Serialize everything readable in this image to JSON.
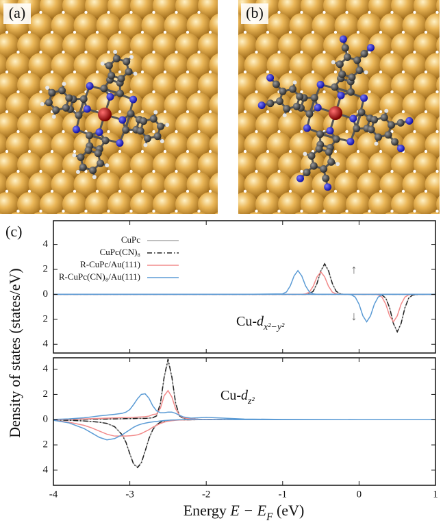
{
  "figure": {
    "panel_labels": [
      "(a)",
      "(b)",
      "(c)"
    ],
    "ylabel": "Density of states (states/eV)",
    "xlabel": [
      {
        "text": "Energy "
      },
      {
        "text": "E − E",
        "italic": true
      },
      {
        "text": "F",
        "italic": true,
        "sub": true
      },
      {
        "text": " (eV)"
      }
    ]
  },
  "chart_data": [
    {
      "type": "line",
      "xlim": [
        -4,
        1
      ],
      "ylim": [
        -4.7,
        5.9
      ],
      "xticks": [
        -4,
        -3,
        -2,
        -1,
        0,
        1
      ],
      "xtick_labels": false,
      "yticks": [
        {
          "value": -4,
          "label": "4"
        },
        {
          "value": -2,
          "label": "2"
        },
        0,
        2,
        4
      ],
      "legend": "upper left",
      "annotations": [
        {
          "segments": [
            {
              "text": "Cu-"
            },
            {
              "text": "d",
              "italic": true
            },
            {
              "text": "x²−y²",
              "italic": true,
              "sub": true
            }
          ]
        },
        {
          "segments": [
            {
              "text": "↑"
            }
          ]
        },
        {
          "segments": [
            {
              "text": "↓"
            }
          ]
        }
      ],
      "x": [
        -4,
        -3,
        -2,
        -1.5,
        -1,
        -0.95,
        -0.9,
        -0.85,
        -0.8,
        -0.75,
        -0.7,
        -0.65,
        -0.6,
        -0.55,
        -0.5,
        -0.45,
        -0.4,
        -0.35,
        -0.3,
        -0.25,
        -0.2,
        -0.15,
        -0.1,
        -0.05,
        0,
        0.05,
        0.1,
        0.15,
        0.2,
        0.25,
        0.3,
        0.35,
        0.4,
        0.45,
        0.5,
        0.55,
        0.6,
        0.65,
        0.7,
        0.8,
        1
      ],
      "series": [
        {
          "name": "CuPc",
          "color": "#aaaaaa",
          "dash": "none",
          "values": [
            0,
            0,
            0,
            0,
            0,
            0,
            0,
            0,
            0,
            0,
            0,
            0.05,
            0.24,
            0.86,
            1.87,
            2.4,
            1.87,
            0.86,
            0.24,
            0.05,
            0,
            0,
            0,
            0,
            0,
            0,
            0,
            0,
            0,
            0,
            0,
            0,
            0,
            0,
            0,
            0,
            0,
            0,
            0,
            0,
            0
          ],
          "values_down": [
            0,
            0,
            0,
            0,
            0,
            0,
            0,
            0,
            0,
            0,
            0,
            0,
            0,
            0,
            0,
            0,
            0,
            0,
            0,
            0,
            0,
            0,
            0,
            0,
            0,
            0,
            0,
            0,
            0,
            0,
            -0.06,
            -0.3,
            -1.08,
            -2.34,
            -3,
            -2.34,
            -1.08,
            -0.3,
            -0.06,
            0,
            0
          ]
        },
        {
          "name": "CuPc(CN)₈",
          "color": "#222222",
          "dash": "7 3 1.5 3",
          "values": [
            0,
            0,
            0,
            0,
            0,
            0,
            0,
            0,
            0,
            0,
            0,
            0.05,
            0.25,
            0.88,
            1.91,
            2.45,
            1.91,
            0.88,
            0.25,
            0.05,
            0,
            0,
            0,
            0,
            0,
            0,
            0,
            0,
            0,
            0,
            0,
            0,
            0,
            0,
            0,
            0,
            0,
            0,
            0,
            0,
            0
          ],
          "values_down": [
            0,
            0,
            0,
            0,
            0,
            0,
            0,
            0,
            0,
            0,
            0,
            0,
            0,
            0,
            0,
            0,
            0,
            0,
            0,
            0,
            0,
            0,
            0,
            0,
            0,
            0,
            0,
            0,
            0,
            0,
            -0.06,
            -0.3,
            -1.08,
            -2.34,
            -3,
            -2.34,
            -1.08,
            -0.3,
            -0.06,
            0,
            0
          ]
        },
        {
          "name": "R-CuPc/Au(111)",
          "color": "#f28b8b",
          "dash": "none",
          "values": [
            0,
            0,
            0,
            0,
            0,
            0,
            0,
            0,
            0,
            0,
            0.04,
            0.18,
            0.65,
            1.4,
            1.8,
            1.4,
            0.65,
            0.18,
            0.04,
            0,
            0,
            0,
            0,
            0,
            0,
            0,
            0,
            0,
            0,
            0,
            0,
            0,
            0,
            0,
            0,
            0,
            0,
            0,
            0,
            0,
            0
          ],
          "values_down": [
            0,
            0,
            0,
            0,
            0,
            0,
            0,
            0,
            0,
            0,
            0,
            0,
            0,
            0,
            0,
            0,
            0,
            0,
            0,
            0,
            0,
            0,
            0,
            0,
            0,
            0,
            0,
            0,
            0,
            -0.04,
            -0.22,
            -0.79,
            -1.72,
            -2.2,
            -1.72,
            -0.79,
            -0.22,
            -0.04,
            0,
            0,
            0
          ]
        },
        {
          "name": "R-CuPc(CN)₈/Au(111)",
          "color": "#5b9bd5",
          "dash": "none",
          "values": [
            0,
            0,
            0,
            0,
            0.04,
            0.19,
            0.68,
            1.48,
            1.9,
            1.48,
            0.68,
            0.19,
            0.04,
            0,
            0,
            0,
            0,
            0,
            0,
            0,
            0,
            0,
            0,
            0,
            0,
            0,
            0,
            0,
            0,
            0,
            0,
            0,
            0,
            0,
            0,
            0,
            0,
            0,
            0,
            0,
            0
          ],
          "values_down": [
            0,
            0,
            0,
            0,
            0,
            0,
            0,
            0,
            0,
            0,
            0,
            0,
            0,
            0,
            0,
            0,
            0,
            0,
            0,
            0,
            0,
            0,
            -0.04,
            -0.22,
            -0.79,
            -1.72,
            -2.2,
            -1.72,
            -0.79,
            -0.22,
            -0.04,
            0,
            0,
            0,
            0,
            0,
            0,
            0,
            0,
            0,
            0
          ]
        }
      ]
    },
    {
      "type": "line",
      "xlim": [
        -4,
        1
      ],
      "ylim": [
        -5.2,
        4.9
      ],
      "xticks": [
        -4,
        -3,
        -2,
        -1,
        0,
        1
      ],
      "xtick_labels": true,
      "yticks": [
        {
          "value": -4,
          "label": "4"
        },
        {
          "value": -2,
          "label": "2"
        },
        0,
        2,
        4
      ],
      "annotations": [
        {
          "segments": [
            {
              "text": "Cu-"
            },
            {
              "text": "d",
              "italic": true
            },
            {
              "text": "z²",
              "italic": true,
              "sub": true
            }
          ]
        }
      ],
      "x": [
        -4,
        -3.8,
        -3.6,
        -3.5,
        -3.4,
        -3.3,
        -3.2,
        -3.1,
        -3.05,
        -3,
        -2.95,
        -2.9,
        -2.85,
        -2.8,
        -2.75,
        -2.7,
        -2.65,
        -2.6,
        -2.55,
        -2.5,
        -2.45,
        -2.4,
        -2.35,
        -2.3,
        -2.2,
        -2.1,
        -2,
        -1.5,
        -1,
        0,
        1
      ],
      "series": [
        {
          "name": "CuPc",
          "color": "#aaaaaa",
          "dash": "none",
          "values": [
            0,
            0.02,
            0.03,
            0.04,
            0.05,
            0.05,
            0.06,
            0.07,
            0.08,
            0.08,
            0.09,
            0.1,
            0.1,
            0.1,
            0.12,
            0.15,
            0.3,
            1.25,
            3.35,
            4.7,
            3.35,
            1.25,
            0.3,
            0.1,
            0.05,
            0.03,
            0.02,
            0,
            0,
            0,
            0
          ],
          "values_down": [
            -0.02,
            -0.05,
            -0.1,
            -0.15,
            -0.2,
            -0.3,
            -0.55,
            -1.2,
            -1.8,
            -2.7,
            -3.5,
            -3.75,
            -3.4,
            -2.5,
            -1.5,
            -0.8,
            -0.4,
            -0.2,
            -0.1,
            -0.06,
            -0.04,
            -0.03,
            -0.02,
            -0.02,
            -0.01,
            0,
            0,
            0,
            0,
            0,
            0
          ]
        },
        {
          "name": "CuPc(CN)₈",
          "color": "#222222",
          "dash": "7 3 1.5 3",
          "values": [
            0,
            0.02,
            0.03,
            0.04,
            0.05,
            0.05,
            0.06,
            0.07,
            0.08,
            0.08,
            0.09,
            0.1,
            0.1,
            0.1,
            0.12,
            0.15,
            0.3,
            1.3,
            3.4,
            4.8,
            3.4,
            1.3,
            0.3,
            0.1,
            0.05,
            0.03,
            0.02,
            0,
            0,
            0,
            0
          ],
          "values_down": [
            -0.02,
            -0.05,
            -0.1,
            -0.15,
            -0.2,
            -0.3,
            -0.55,
            -1.2,
            -1.8,
            -2.7,
            -3.55,
            -3.8,
            -3.45,
            -2.5,
            -1.5,
            -0.8,
            -0.4,
            -0.2,
            -0.1,
            -0.06,
            -0.04,
            -0.03,
            -0.02,
            -0.02,
            -0.01,
            0,
            0,
            0,
            0,
            0,
            0
          ]
        },
        {
          "name": "R-CuPc/Au(111)",
          "color": "#f28b8b",
          "dash": "none",
          "values": [
            0,
            0.03,
            0.06,
            0.08,
            0.1,
            0.12,
            0.14,
            0.16,
            0.17,
            0.18,
            0.19,
            0.2,
            0.22,
            0.24,
            0.28,
            0.4,
            0.45,
            0.9,
            1.9,
            2.3,
            1.8,
            0.85,
            0.35,
            0.15,
            0.06,
            0.03,
            0.02,
            0,
            0,
            0,
            0
          ],
          "values_down": [
            -0.05,
            -0.2,
            -0.45,
            -0.65,
            -0.9,
            -1.15,
            -1.3,
            -1.3,
            -1.3,
            -1.28,
            -1.25,
            -1.2,
            -1.1,
            -0.95,
            -0.8,
            -0.6,
            -0.45,
            -0.3,
            -0.2,
            -0.12,
            -0.08,
            -0.05,
            -0.03,
            -0.02,
            -0.01,
            0,
            0,
            0,
            0,
            0,
            0
          ]
        },
        {
          "name": "R-CuPc(CN)₈/Au(111)",
          "color": "#5b9bd5",
          "dash": "none",
          "values": [
            0.02,
            0.06,
            0.15,
            0.22,
            0.3,
            0.36,
            0.42,
            0.5,
            0.6,
            0.8,
            1.2,
            1.65,
            2,
            2.05,
            1.7,
            1.1,
            0.7,
            0.55,
            0.55,
            0.6,
            0.6,
            0.5,
            0.35,
            0.22,
            0.12,
            0.15,
            0.18,
            0.05,
            0.02,
            0,
            0
          ],
          "values_down": [
            -0.05,
            -0.25,
            -0.7,
            -1.05,
            -1.4,
            -1.6,
            -1.5,
            -1.2,
            -1,
            -0.8,
            -0.6,
            -0.45,
            -0.35,
            -0.28,
            -0.22,
            -0.18,
            -0.14,
            -0.1,
            -0.07,
            -0.05,
            -0.03,
            -0.02,
            -0.01,
            0,
            0,
            0,
            0,
            0,
            0,
            0,
            0
          ]
        }
      ]
    }
  ]
}
